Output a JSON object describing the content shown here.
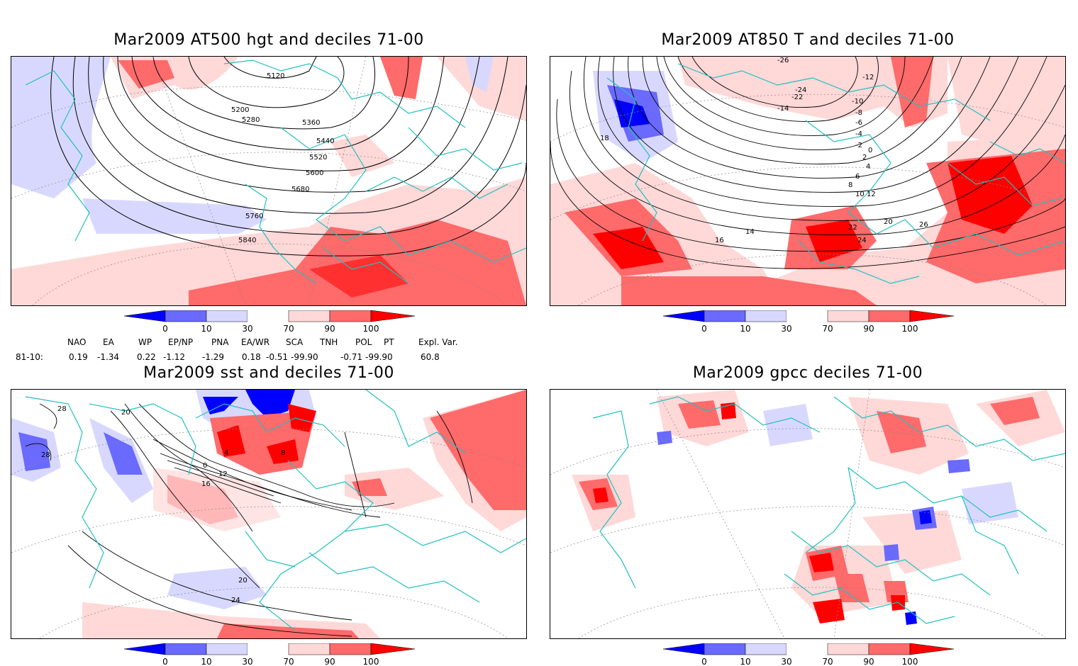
{
  "panels": [
    {
      "id": "at500",
      "title": "Mar2009 AT500 hgt and deciles 71-00",
      "contour_labels": [
        "5120",
        "5200",
        "5280",
        "5360",
        "5440",
        "5520",
        "5600",
        "5680",
        "5760",
        "5840"
      ]
    },
    {
      "id": "at850",
      "title": "Mar2009 AT850 T and deciles 71-00",
      "contour_labels": [
        "-26",
        "-24",
        "-22",
        "-14",
        "-12",
        "-10",
        "-8",
        "-6",
        "-4",
        "-2",
        "0",
        "2",
        "4",
        "6",
        "8",
        "10",
        "12",
        "14",
        "16",
        "18",
        "20",
        "22",
        "24",
        "26"
      ]
    },
    {
      "id": "sst",
      "title": "Mar2009 sst and deciles 71-00",
      "contour_labels": [
        "28",
        "20",
        "0",
        "4",
        "8",
        "12",
        "16",
        "20",
        "24",
        "28"
      ]
    },
    {
      "id": "gpcc",
      "title": "Mar2009 gpcc deciles 71-00",
      "contour_labels": []
    }
  ],
  "colorbar": {
    "ticks": [
      "0",
      "10",
      "30",
      "70",
      "90",
      "100"
    ],
    "colors": [
      "#0000ff",
      "#6a6aff",
      "#d8d8ff",
      "#ffffff",
      "#ffd8d8",
      "#ff6a6a",
      "#ff0000"
    ]
  },
  "teleconnections": {
    "headers": [
      "NAO",
      "EA",
      "WP",
      "EP/NP",
      "PNA",
      "EA/WR",
      "SCA",
      "TNH",
      "POL",
      "PT",
      "Expl. Var."
    ],
    "row_label": "81-10:",
    "values": [
      "0.19",
      "-1.34",
      "0.22",
      "-1.12",
      "-1.29",
      "0.18",
      "-0.51",
      "-99.90",
      "-0.71",
      "-99.90",
      "60.8"
    ]
  },
  "colors": {
    "coast": "#20c0c0",
    "contour": "#000000",
    "grid": "#888888"
  }
}
